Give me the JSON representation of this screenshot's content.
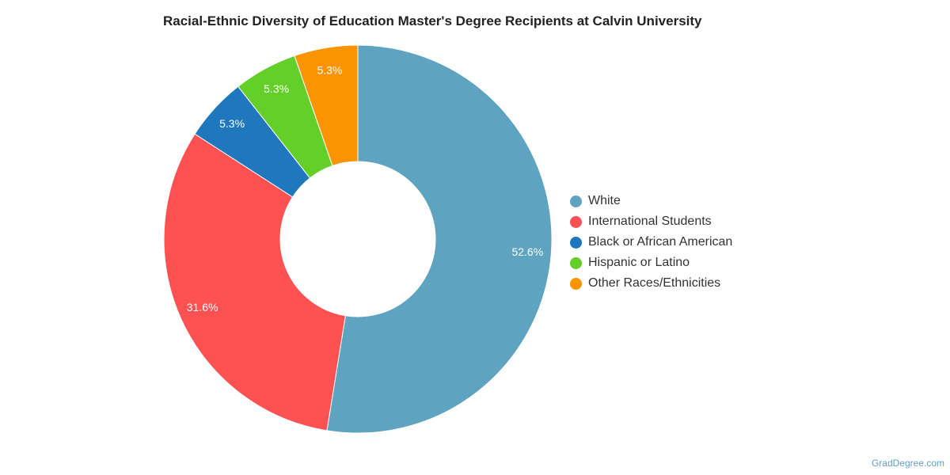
{
  "chart_data": {
    "type": "pie",
    "title": "Racial-Ethnic Diversity of Education Master's Degree Recipients at Calvin University",
    "donut": true,
    "legend_position": "right",
    "slices": [
      {
        "label": "White",
        "value": 52.6,
        "display": "52.6%",
        "color": "#5ea3c0"
      },
      {
        "label": "International Students",
        "value": 31.6,
        "display": "31.6%",
        "color": "#fe5151"
      },
      {
        "label": "Black or African American",
        "value": 5.3,
        "display": "5.3%",
        "color": "#1f78bd"
      },
      {
        "label": "Hispanic or Latino",
        "value": 5.3,
        "display": "5.3%",
        "color": "#63cf28"
      },
      {
        "label": "Other Races/Ethnicities",
        "value": 5.3,
        "display": "5.3%",
        "color": "#fb9400"
      }
    ]
  },
  "watermark": "GradDegree.com"
}
